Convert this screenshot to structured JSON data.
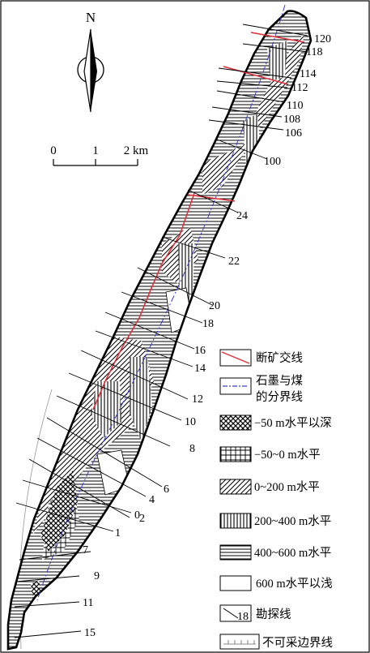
{
  "north_label": "N",
  "scale_bar": {
    "ticks": [
      "0",
      "1",
      "2 km"
    ]
  },
  "exploration_lines": [
    "120",
    "118",
    "114",
    "112",
    "110",
    "108",
    "106",
    "100",
    "24",
    "22",
    "20",
    "18",
    "16",
    "14",
    "12",
    "10",
    "8",
    "6",
    "4",
    "2",
    "0",
    "1",
    "7",
    "9",
    "11",
    "15"
  ],
  "legend": [
    {
      "key": "fault",
      "lines": [
        "断矿交线"
      ],
      "color": "#e0303a"
    },
    {
      "key": "graphite-coal-boundary",
      "lines": [
        "石墨与煤",
        "的分界线"
      ],
      "color": "#3a3ad0"
    },
    {
      "key": "below-minus50",
      "lines": [
        "−50 m水平以深"
      ]
    },
    {
      "key": "minus50-to-0",
      "lines": [
        "−50~0 m水平"
      ]
    },
    {
      "key": "0-to-200",
      "lines": [
        "0~200 m水平"
      ]
    },
    {
      "key": "200-to-400",
      "lines": [
        "200~400 m水平"
      ]
    },
    {
      "key": "400-to-600",
      "lines": [
        "400~600 m水平"
      ]
    },
    {
      "key": "above-600",
      "lines": [
        "600 m水平以浅"
      ]
    },
    {
      "key": "exploration-line",
      "lines": [
        "勘探线"
      ],
      "sample": "18"
    },
    {
      "key": "unminable-boundary",
      "lines": [
        "不可采边界线"
      ]
    }
  ]
}
